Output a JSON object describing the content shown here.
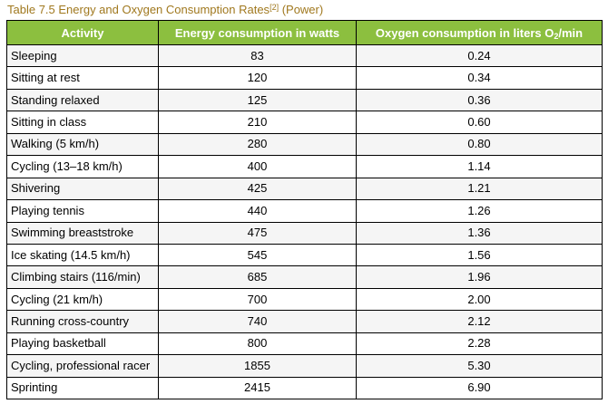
{
  "caption": {
    "text": "Table 7.5 Energy and Oxygen Consumption Rates",
    "ref": "[2]",
    "suffix": " (Power)"
  },
  "table": {
    "headers": {
      "activity": "Activity",
      "energy": "Energy consumption in watts",
      "oxygen_prefix": "Oxygen consumption in liters O",
      "oxygen_sub": "2",
      "oxygen_suffix": "/min"
    },
    "rows": [
      {
        "activity": "Sleeping",
        "energy": "83",
        "oxygen": "0.24"
      },
      {
        "activity": "Sitting at rest",
        "energy": "120",
        "oxygen": "0.34"
      },
      {
        "activity": "Standing relaxed",
        "energy": "125",
        "oxygen": "0.36"
      },
      {
        "activity": "Sitting in class",
        "energy": "210",
        "oxygen": "0.60"
      },
      {
        "activity": "Walking (5 km/h)",
        "energy": "280",
        "oxygen": "0.80"
      },
      {
        "activity": "Cycling (13–18 km/h)",
        "energy": "400",
        "oxygen": "1.14"
      },
      {
        "activity": "Shivering",
        "energy": "425",
        "oxygen": "1.21"
      },
      {
        "activity": "Playing tennis",
        "energy": "440",
        "oxygen": "1.26"
      },
      {
        "activity": "Swimming breaststroke",
        "energy": "475",
        "oxygen": "1.36"
      },
      {
        "activity": "Ice skating (14.5 km/h)",
        "energy": "545",
        "oxygen": "1.56"
      },
      {
        "activity": "Climbing stairs (116/min)",
        "energy": "685",
        "oxygen": "1.96"
      },
      {
        "activity": "Cycling (21 km/h)",
        "energy": "700",
        "oxygen": "2.00"
      },
      {
        "activity": "Running cross-country",
        "energy": "740",
        "oxygen": "2.12"
      },
      {
        "activity": "Playing basketball",
        "energy": "800",
        "oxygen": "2.28"
      },
      {
        "activity": "Cycling, professional racer",
        "energy": "1855",
        "oxygen": "5.30"
      },
      {
        "activity": "Sprinting",
        "energy": "2415",
        "oxygen": "6.90"
      }
    ]
  },
  "colors": {
    "header_bg": "#8cbf3f",
    "caption_text": "#a0781e",
    "row_alt": "#f5f5f5"
  }
}
